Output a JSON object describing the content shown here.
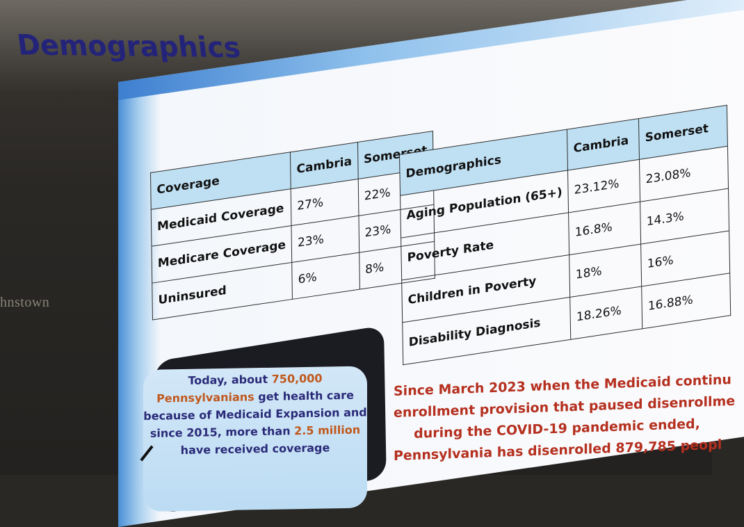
{
  "wall_sign": "hnstown",
  "slide": {
    "title": "Demographics",
    "coverage_table": {
      "headers": [
        "Coverage",
        "Cambria",
        "Somerset"
      ],
      "rows": [
        [
          "Medicaid Coverage",
          "27%",
          "22%"
        ],
        [
          "Medicare Coverage",
          "23%",
          "23%"
        ],
        [
          "Uninsured",
          "6%",
          "8%"
        ]
      ]
    },
    "demographics_table": {
      "headers": [
        "Demographics",
        "Cambria",
        "Somerset"
      ],
      "rows": [
        [
          "Aging Population (65+)",
          "23.12%",
          "23.08%"
        ],
        [
          "Poverty Rate",
          "16.8%",
          "14.3%"
        ],
        [
          "Children in Poverty",
          "18%",
          "16%"
        ],
        [
          "Disability Diagnosis",
          "18.26%",
          "16.88%"
        ]
      ]
    },
    "callout": {
      "line1_a": "Today, about ",
      "line1_hl": "750,000",
      "line2_hl": "Pennsylvanians",
      "line2_b": " get health care",
      "line3": "because of Medicaid Expansion and",
      "line4_a": "since 2015, more than ",
      "line4_hl": "2.5 million",
      "line5": "have received coverage"
    },
    "notice": {
      "line1": "Since March 2023 when the Medicaid continu",
      "line2": "enrollment provision that paused disenrollme",
      "line3": "during the COVID-19 pandemic ended,",
      "line4": "Pennsylvania has disenrolled 879,785 peopl"
    },
    "colors": {
      "title": "#23237a",
      "table_header": "#bfe0f3",
      "highlight_orange": "#c0581c",
      "notice_red": "#b5301f",
      "callout_bg": "#c8e2f5"
    }
  }
}
